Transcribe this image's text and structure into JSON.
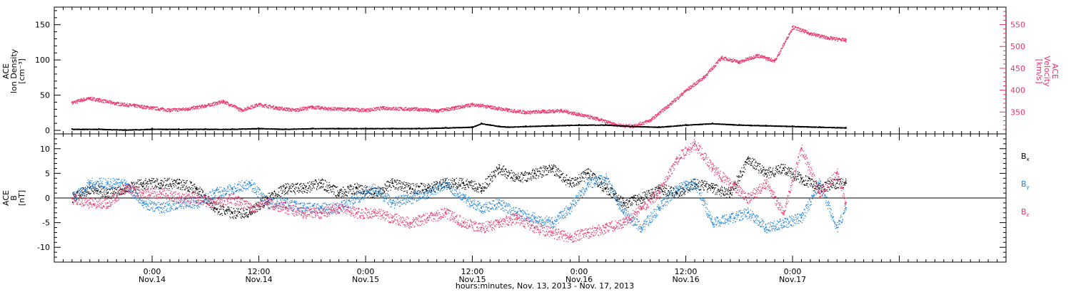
{
  "chart_data": [
    {
      "type": "scatter",
      "panel": "top",
      "ylabel_left": [
        "ACE",
        "Ion Density",
        "[cm⁻³]"
      ],
      "ylabel_right": [
        "ACE",
        "Velocity",
        "[km/s]"
      ],
      "ylim_left": [
        -5,
        175
      ],
      "yticks_left": [
        0,
        50,
        100,
        150
      ],
      "ylim_right": [
        300,
        590
      ],
      "yticks_right": [
        350,
        400,
        450,
        500,
        550
      ],
      "series": [
        {
          "axis": "left",
          "color": "#000000",
          "x": [
            -9,
            -6,
            -3,
            0,
            3,
            6,
            9,
            12,
            15,
            18,
            21,
            24,
            27,
            30,
            33,
            36,
            37,
            38,
            39,
            40,
            42,
            45,
            48,
            51,
            54,
            57,
            60,
            63,
            66,
            69,
            72,
            75,
            78
          ],
          "values": [
            2,
            2,
            1,
            2,
            2,
            2,
            2,
            3,
            2,
            3,
            3,
            3,
            3,
            3,
            4,
            5,
            10,
            8,
            6,
            5,
            6,
            7,
            8,
            8,
            6,
            5,
            8,
            10,
            8,
            7,
            6,
            5,
            4
          ]
        },
        {
          "axis": "right",
          "color": "#e8336a",
          "x": [
            -9,
            -8,
            -7,
            -6,
            -4,
            -2,
            0,
            2,
            4,
            6,
            8,
            10,
            12,
            14,
            16,
            18,
            20,
            22,
            24,
            26,
            28,
            30,
            32,
            34,
            36,
            38,
            40,
            42,
            44,
            46,
            48,
            50,
            52,
            54,
            56,
            58,
            60,
            62,
            64,
            66,
            68,
            70,
            72,
            74,
            76,
            78
          ],
          "values": [
            372,
            378,
            382,
            378,
            370,
            365,
            360,
            355,
            358,
            365,
            375,
            355,
            368,
            360,
            355,
            362,
            358,
            357,
            355,
            360,
            358,
            357,
            353,
            360,
            368,
            362,
            355,
            350,
            352,
            354,
            345,
            335,
            322,
            318,
            332,
            365,
            400,
            430,
            475,
            465,
            480,
            468,
            545,
            530,
            520,
            515
          ]
        }
      ]
    },
    {
      "type": "scatter",
      "panel": "bottom",
      "ylabel": [
        "ACE",
        "B",
        "[nT]"
      ],
      "ylim": [
        -13,
        13
      ],
      "yticks": [
        -10,
        -5,
        0,
        5,
        10
      ],
      "reference_line": 0,
      "legend": [
        "B",
        "B",
        "B"
      ],
      "legend_subscripts": [
        "x",
        "y",
        "z"
      ],
      "legend_colors": [
        "#000000",
        "#1a7fd6",
        "#e8336a"
      ],
      "legend_position": "right",
      "series": [
        {
          "name_ref": 0,
          "color": "#000000",
          "x": [
            -9,
            -7,
            -5,
            -3,
            -1,
            1,
            3,
            5,
            7,
            9,
            11,
            13,
            15,
            17,
            19,
            21,
            23,
            25,
            27,
            29,
            31,
            33,
            35,
            37,
            39,
            41,
            43,
            45,
            47,
            49,
            51,
            53,
            55,
            57,
            59,
            61,
            63,
            65,
            67,
            69,
            71,
            73,
            75,
            77,
            78
          ],
          "values": [
            0,
            2,
            1,
            2,
            3,
            3,
            3,
            2,
            -2,
            -3,
            -3,
            0,
            2,
            2,
            3,
            1,
            2,
            1,
            3,
            2,
            2,
            3,
            3,
            2,
            6,
            4,
            5,
            6,
            3,
            5,
            2,
            -1,
            0,
            2,
            1,
            3,
            2,
            1,
            8,
            5,
            6,
            4,
            2,
            3,
            3
          ]
        },
        {
          "name_ref": 1,
          "color": "#1a7fd6",
          "x": [
            -9,
            -7,
            -5,
            -3,
            -1,
            1,
            3,
            5,
            7,
            9,
            11,
            13,
            15,
            17,
            19,
            21,
            23,
            25,
            27,
            29,
            31,
            33,
            35,
            37,
            39,
            41,
            43,
            45,
            47,
            49,
            51,
            53,
            55,
            57,
            59,
            61,
            63,
            65,
            67,
            69,
            71,
            73,
            75,
            77,
            78
          ],
          "values": [
            0,
            3,
            3,
            3,
            -1,
            -2,
            -1,
            -1,
            1,
            2,
            3,
            -1,
            -1,
            -2,
            -2,
            -2,
            0,
            2,
            -1,
            0,
            1,
            3,
            0,
            -2,
            -1,
            -3,
            -4,
            -5,
            -2,
            3,
            4,
            -3,
            -6,
            -2,
            2,
            3,
            -5,
            -4,
            -3,
            -6,
            -5,
            -4,
            3,
            -6,
            -2
          ]
        },
        {
          "name_ref": 2,
          "color": "#e8336a",
          "x": [
            -9,
            -7,
            -5,
            -3,
            -1,
            1,
            3,
            5,
            7,
            9,
            11,
            13,
            15,
            17,
            19,
            21,
            23,
            25,
            27,
            29,
            31,
            33,
            35,
            37,
            39,
            41,
            43,
            45,
            47,
            49,
            51,
            53,
            55,
            57,
            59,
            61,
            63,
            65,
            67,
            69,
            71,
            73,
            75,
            77,
            78
          ],
          "values": [
            0,
            -1,
            -1,
            2,
            1,
            1,
            0,
            0,
            -1,
            0,
            -2,
            -1,
            -2,
            -3,
            -3,
            -2,
            -3,
            -3,
            -4,
            -5,
            -4,
            -3,
            -5,
            -6,
            -5,
            -4,
            -6,
            -7,
            -8,
            -7,
            -6,
            -5,
            -2,
            1,
            8,
            11,
            6,
            3,
            0,
            3,
            -3,
            10,
            1,
            5,
            -1
          ]
        }
      ]
    }
  ],
  "x_axis": {
    "xlim": [
      -11,
      96
    ],
    "ticks": [
      {
        "x": 0,
        "time": "0:00",
        "date": "Nov.14"
      },
      {
        "x": 12,
        "time": "12:00",
        "date": "Nov.14"
      },
      {
        "x": 24,
        "time": "0:00",
        "date": "Nov.15"
      },
      {
        "x": 36,
        "time": "12:00",
        "date": "Nov.15"
      },
      {
        "x": 48,
        "time": "0:00",
        "date": "Nov.16"
      },
      {
        "x": 60,
        "time": "12:00",
        "date": "Nov.16"
      },
      {
        "x": 72,
        "time": "0:00",
        "date": "Nov.17"
      }
    ],
    "xlabel": "hours:minutes, Nov. 13, 2013 - Nov. 17, 2013"
  }
}
